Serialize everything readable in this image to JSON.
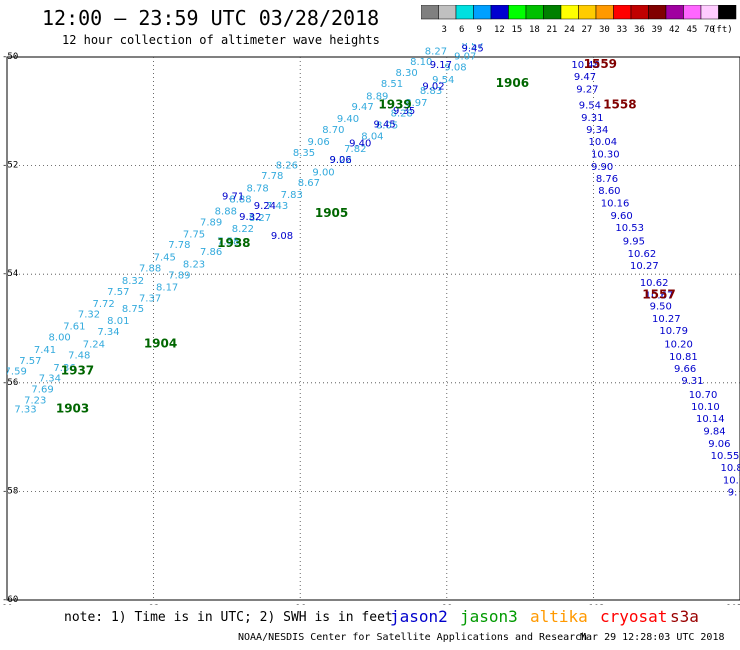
{
  "title": "12:00 – 23:59 UTC 03/28/2018",
  "subtitle": "12 hour collection of altimeter wave heights",
  "scale": {
    "unit": "(ft)",
    "items": [
      {
        "label": "",
        "color": "#808080"
      },
      {
        "label": "3",
        "color": "#c0c0c0"
      },
      {
        "label": "6",
        "color": "#00e0e0"
      },
      {
        "label": "9",
        "color": "#00a0ff"
      },
      {
        "label": "12",
        "color": "#0000d0"
      },
      {
        "label": "15",
        "color": "#00ff00"
      },
      {
        "label": "18",
        "color": "#00c000"
      },
      {
        "label": "21",
        "color": "#008000"
      },
      {
        "label": "24",
        "color": "#ffff00"
      },
      {
        "label": "27",
        "color": "#ffcc00"
      },
      {
        "label": "30",
        "color": "#ff9900"
      },
      {
        "label": "33",
        "color": "#ff0000"
      },
      {
        "label": "36",
        "color": "#c00000"
      },
      {
        "label": "39",
        "color": "#800000"
      },
      {
        "label": "42",
        "color": "#a000a0"
      },
      {
        "label": "45",
        "color": "#ff66ff"
      },
      {
        "label": "70",
        "color": "#ffccff"
      },
      {
        "label": "",
        "color": "#000000"
      }
    ]
  },
  "note": "note: 1) Time is in UTC; 2) SWH is in feet",
  "satellites": [
    {
      "name": "jason2",
      "color": "#0000cc"
    },
    {
      "name": "jason3",
      "color": "#009900"
    },
    {
      "name": "altika",
      "color": "#ff9900"
    },
    {
      "name": "cryosat",
      "color": "#ff0000"
    },
    {
      "name": "s3a",
      "color": "#990000"
    }
  ],
  "credit": "NOAA/NESDIS Center for Satellite Applications and Research",
  "timestamp": "Mar 29 12:28:03 UTC 2018",
  "chart_data": {
    "type": "scatter",
    "x_ticks": [
      "90",
      "93",
      "96",
      "99",
      "102",
      "105"
    ],
    "y_ticks": [
      "-50",
      "-52",
      "-54",
      "-56",
      "-58",
      "-60"
    ],
    "xlim": [
      90,
      105
    ],
    "ylim": [
      -60,
      -50
    ],
    "grid": true,
    "passes": [
      {
        "label": "1903",
        "x": 91.0,
        "y": -56.55,
        "color": "#006600"
      },
      {
        "label": "1937",
        "x": 91.1,
        "y": -55.85,
        "color": "#006600"
      },
      {
        "label": "1904",
        "x": 92.8,
        "y": -55.35,
        "color": "#006600"
      },
      {
        "label": "1938",
        "x": 94.3,
        "y": -53.5,
        "color": "#006600"
      },
      {
        "label": "1905",
        "x": 96.3,
        "y": -52.95,
        "color": "#006600"
      },
      {
        "label": "1939",
        "x": 97.6,
        "y": -50.95,
        "color": "#006600"
      },
      {
        "label": "1906",
        "x": 100.0,
        "y": -50.55,
        "color": "#006600"
      },
      {
        "label": "1559",
        "x": 101.8,
        "y": -50.2,
        "color": "#800000"
      },
      {
        "label": "1558",
        "x": 102.2,
        "y": -50.95,
        "color": "#800000"
      },
      {
        "label": "1557",
        "x": 103.0,
        "y": -54.45,
        "color": "#800000"
      }
    ],
    "tracks": [
      {
        "satellite": "cryosat",
        "color": "#0000cc",
        "points": [
          {
            "x": 101.55,
            "y": -50.2,
            "v": "10.48"
          },
          {
            "x": 101.6,
            "y": -50.42,
            "v": "9.47"
          },
          {
            "x": 101.65,
            "y": -50.65,
            "v": "9.27"
          },
          {
            "x": 101.7,
            "y": -50.95,
            "v": "9.54"
          },
          {
            "x": 101.75,
            "y": -51.18,
            "v": "9.31"
          },
          {
            "x": 101.85,
            "y": -51.4,
            "v": "9.34"
          },
          {
            "x": 101.9,
            "y": -51.62,
            "v": "10.04"
          },
          {
            "x": 101.95,
            "y": -51.85,
            "v": "10.30"
          },
          {
            "x": 101.95,
            "y": -52.08,
            "v": "9.90"
          },
          {
            "x": 102.05,
            "y": -52.3,
            "v": "8.76"
          },
          {
            "x": 102.1,
            "y": -52.52,
            "v": "8.60"
          },
          {
            "x": 102.15,
            "y": -52.75,
            "v": "10.16"
          },
          {
            "x": 102.35,
            "y": -52.98,
            "v": "9.60"
          },
          {
            "x": 102.45,
            "y": -53.2,
            "v": "10.53"
          },
          {
            "x": 102.6,
            "y": -53.45,
            "v": "9.95"
          },
          {
            "x": 102.7,
            "y": -53.68,
            "v": "10.62"
          },
          {
            "x": 102.75,
            "y": -53.9,
            "v": "10.27"
          },
          {
            "x": 102.95,
            "y": -54.22,
            "v": "10.62"
          },
          {
            "x": 103.05,
            "y": -54.45,
            "v": "10.67"
          },
          {
            "x": 103.15,
            "y": -54.65,
            "v": "9.50"
          },
          {
            "x": 103.2,
            "y": -54.88,
            "v": "10.27"
          },
          {
            "x": 103.35,
            "y": -55.1,
            "v": "10.79"
          },
          {
            "x": 103.45,
            "y": -55.35,
            "v": "10.20"
          },
          {
            "x": 103.55,
            "y": -55.58,
            "v": "10.81"
          },
          {
            "x": 103.65,
            "y": -55.8,
            "v": "9.66"
          },
          {
            "x": 103.8,
            "y": -56.02,
            "v": "9.31"
          },
          {
            "x": 103.95,
            "y": -56.28,
            "v": "10.70"
          },
          {
            "x": 104.0,
            "y": -56.5,
            "v": "10.10"
          },
          {
            "x": 104.1,
            "y": -56.72,
            "v": "10.14"
          },
          {
            "x": 104.25,
            "y": -56.95,
            "v": "9.84"
          },
          {
            "x": 104.35,
            "y": -57.18,
            "v": "9.06"
          },
          {
            "x": 104.4,
            "y": -57.4,
            "v": "10.55"
          },
          {
            "x": 104.6,
            "y": -57.62,
            "v": "10.81"
          },
          {
            "x": 104.65,
            "y": -57.85,
            "v": "10.7"
          },
          {
            "x": 104.75,
            "y": -58.08,
            "v": "9."
          }
        ]
      },
      {
        "satellite": "jason3",
        "color": "#33aadd",
        "points": [
          {
            "x": 90.15,
            "y": -56.55,
            "v": "7.33"
          },
          {
            "x": 90.35,
            "y": -56.38,
            "v": "7.23"
          },
          {
            "x": 90.5,
            "y": -56.18,
            "v": "7.69"
          },
          {
            "x": 90.65,
            "y": -55.98,
            "v": "7.34"
          },
          {
            "x": 90.95,
            "y": -55.78,
            "v": "7.36"
          },
          {
            "x": 91.25,
            "y": -55.55,
            "v": "7.48"
          },
          {
            "x": 91.55,
            "y": -55.35,
            "v": "7.24"
          },
          {
            "x": 91.85,
            "y": -55.12,
            "v": "7.34"
          },
          {
            "x": 92.05,
            "y": -54.92,
            "v": "8.01"
          },
          {
            "x": 92.35,
            "y": -54.7,
            "v": "8.75"
          },
          {
            "x": 92.7,
            "y": -54.5,
            "v": "7.37"
          },
          {
            "x": 93.05,
            "y": -54.3,
            "v": "8.17"
          },
          {
            "x": 93.3,
            "y": -54.08,
            "v": "7.89"
          },
          {
            "x": 93.6,
            "y": -53.88,
            "v": "8.23"
          },
          {
            "x": 93.95,
            "y": -53.65,
            "v": "7.86"
          },
          {
            "x": 94.3,
            "y": -53.45,
            "v": "7.58"
          },
          {
            "x": 94.6,
            "y": -53.22,
            "v": "8.22"
          },
          {
            "x": 94.95,
            "y": -53.02,
            "v": "8.27"
          },
          {
            "x": 95.3,
            "y": -52.8,
            "v": "7.43"
          },
          {
            "x": 95.6,
            "y": -52.6,
            "v": "7.83"
          },
          {
            "x": 95.95,
            "y": -52.38,
            "v": "8.67"
          },
          {
            "x": 96.25,
            "y": -52.18,
            "v": "9.00"
          },
          {
            "x": 96.6,
            "y": -51.95,
            "v": "9.22"
          },
          {
            "x": 96.9,
            "y": -51.75,
            "v": "7.82"
          },
          {
            "x": 97.25,
            "y": -51.52,
            "v": "8.04"
          },
          {
            "x": 97.55,
            "y": -51.32,
            "v": "8.05"
          },
          {
            "x": 97.85,
            "y": -51.1,
            "v": "8.28"
          },
          {
            "x": 98.15,
            "y": -50.9,
            "v": "8.97"
          },
          {
            "x": 98.45,
            "y": -50.68,
            "v": "8.83"
          },
          {
            "x": 98.7,
            "y": -50.48,
            "v": "9.54"
          },
          {
            "x": 98.95,
            "y": -50.25,
            "v": "9.08"
          },
          {
            "x": 99.15,
            "y": -50.05,
            "v": "9.07"
          },
          {
            "x": 99.3,
            "y": -49.85,
            "v": "8.57"
          }
        ]
      },
      {
        "satellite": "jason2",
        "color": "#33aadd",
        "points": [
          {
            "x": 89.95,
            "y": -55.85,
            "v": "7.59"
          },
          {
            "x": 90.25,
            "y": -55.65,
            "v": "7.57"
          },
          {
            "x": 90.55,
            "y": -55.45,
            "v": "7.41"
          },
          {
            "x": 90.85,
            "y": -55.22,
            "v": "8.00"
          },
          {
            "x": 91.15,
            "y": -55.02,
            "v": "7.61"
          },
          {
            "x": 91.45,
            "y": -54.8,
            "v": "7.32"
          },
          {
            "x": 91.75,
            "y": -54.6,
            "v": "7.72"
          },
          {
            "x": 92.05,
            "y": -54.38,
            "v": "7.57"
          },
          {
            "x": 92.35,
            "y": -54.18,
            "v": "8.32"
          },
          {
            "x": 92.7,
            "y": -53.95,
            "v": "7.88"
          },
          {
            "x": 93.0,
            "y": -53.75,
            "v": "7.45"
          },
          {
            "x": 93.3,
            "y": -53.52,
            "v": "7.78"
          },
          {
            "x": 93.6,
            "y": -53.32,
            "v": "7.75"
          },
          {
            "x": 93.95,
            "y": -53.1,
            "v": "7.89"
          },
          {
            "x": 94.25,
            "y": -52.9,
            "v": "8.88"
          },
          {
            "x": 94.55,
            "y": -52.68,
            "v": "8.88"
          },
          {
            "x": 94.9,
            "y": -52.48,
            "v": "8.78"
          },
          {
            "x": 95.2,
            "y": -52.25,
            "v": "7.78"
          },
          {
            "x": 95.5,
            "y": -52.05,
            "v": "8.26"
          },
          {
            "x": 95.85,
            "y": -51.82,
            "v": "8.35"
          },
          {
            "x": 96.15,
            "y": -51.62,
            "v": "9.06"
          },
          {
            "x": 96.45,
            "y": -51.4,
            "v": "8.70"
          },
          {
            "x": 96.75,
            "y": -51.2,
            "v": "9.40"
          },
          {
            "x": 97.05,
            "y": -50.98,
            "v": "9.47"
          },
          {
            "x": 97.35,
            "y": -50.78,
            "v": "8.89"
          },
          {
            "x": 97.65,
            "y": -50.55,
            "v": "8.51"
          },
          {
            "x": 97.95,
            "y": -50.35,
            "v": "8.30"
          },
          {
            "x": 98.25,
            "y": -50.15,
            "v": "8.10"
          },
          {
            "x": 98.55,
            "y": -49.95,
            "v": "8.27"
          }
        ]
      },
      {
        "satellite": "jason2",
        "color": "#0000cc",
        "points": [
          {
            "x": 95.4,
            "y": -53.35,
            "v": "9.08"
          },
          {
            "x": 94.75,
            "y": -53.0,
            "v": "9.32"
          },
          {
            "x": 95.05,
            "y": -52.8,
            "v": "9.24"
          },
          {
            "x": 94.4,
            "y": -52.62,
            "v": "9.71"
          },
          {
            "x": 96.6,
            "y": -51.95,
            "v": "9.06"
          },
          {
            "x": 97.0,
            "y": -51.65,
            "v": "9.40"
          },
          {
            "x": 97.5,
            "y": -51.3,
            "v": "9.45"
          },
          {
            "x": 97.9,
            "y": -51.05,
            "v": "9.35"
          },
          {
            "x": 98.5,
            "y": -50.6,
            "v": "9.02"
          },
          {
            "x": 98.65,
            "y": -50.2,
            "v": "9.17"
          },
          {
            "x": 99.3,
            "y": -49.9,
            "v": "9.45"
          }
        ]
      }
    ]
  }
}
